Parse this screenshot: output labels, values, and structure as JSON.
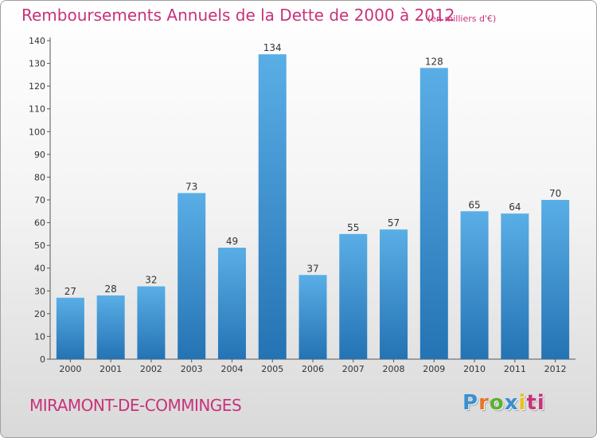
{
  "title": "Remboursements Annuels de la Dette de 2000 à 2012",
  "subtitle": "(en milliers d'€)",
  "city": "MIRAMONT-DE-COMMINGES",
  "logo": "Proxiti",
  "logo_letters": [
    "P",
    "r",
    "o",
    "x",
    "i",
    "ti"
  ],
  "chart_data": {
    "type": "bar",
    "title": "Remboursements Annuels de la Dette de 2000 à 2012",
    "subtitle": "(en milliers d'€)",
    "xlabel": "",
    "ylabel": "",
    "categories": [
      "2000",
      "2001",
      "2002",
      "2003",
      "2004",
      "2005",
      "2006",
      "2007",
      "2008",
      "2009",
      "2010",
      "2011",
      "2012"
    ],
    "values": [
      27,
      28,
      32,
      73,
      49,
      134,
      37,
      55,
      57,
      128,
      65,
      64,
      70
    ],
    "ylim": [
      0,
      140
    ],
    "yticks": [
      0,
      10,
      20,
      30,
      40,
      50,
      60,
      70,
      80,
      90,
      100,
      110,
      120,
      130,
      140
    ],
    "grid": false,
    "legend": "none",
    "bar_color_top": "#5aaee6",
    "bar_color_bottom": "#2473b4",
    "text_color": "#c8327a"
  }
}
